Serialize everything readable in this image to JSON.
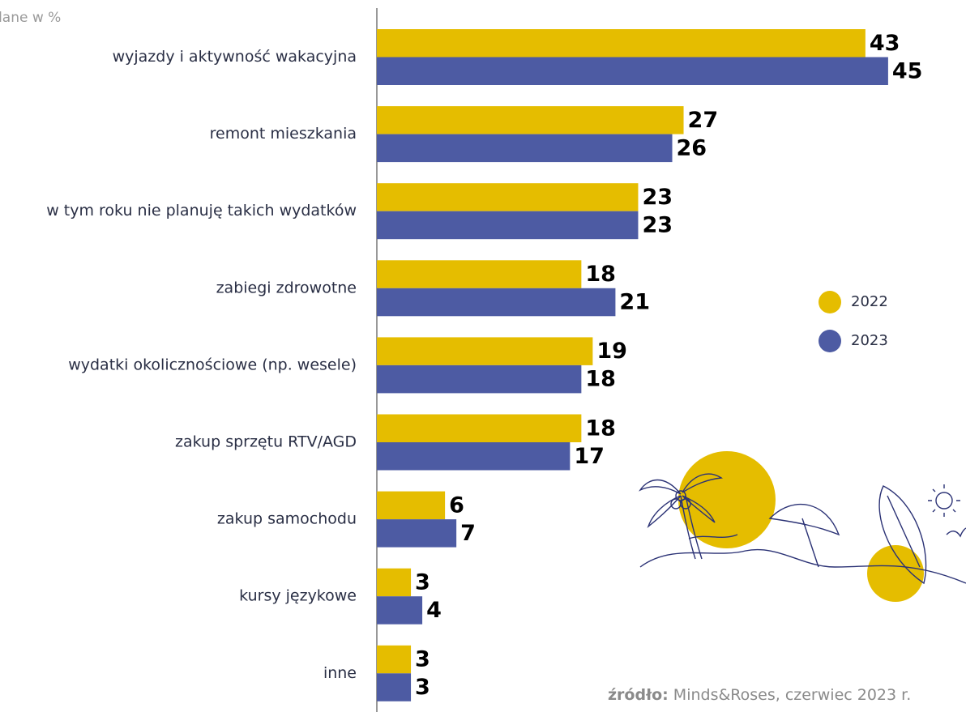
{
  "chart_data": {
    "type": "bar",
    "orientation": "horizontal",
    "subtitle": "dane w %",
    "categories": [
      "wyjazdy i aktywność wakacyjna",
      "remont mieszkania",
      "w tym roku nie planuję takich wydatków",
      "zabiegi zdrowotne",
      "wydatki okolicznościowe (np. wesele)",
      "zakup sprzętu RTV/AGD",
      "zakup samochodu",
      "kursy językowe",
      "inne"
    ],
    "series": [
      {
        "name": "2022",
        "color": "#e5bd00",
        "values": [
          43,
          27,
          23,
          18,
          19,
          18,
          6,
          3,
          3
        ]
      },
      {
        "name": "2023",
        "color": "#4d5ba3",
        "values": [
          45,
          26,
          23,
          21,
          18,
          17,
          7,
          4,
          3
        ]
      }
    ],
    "source_label": "źródło:",
    "source": "Minds&Roses, czerwiec 2023 r."
  }
}
